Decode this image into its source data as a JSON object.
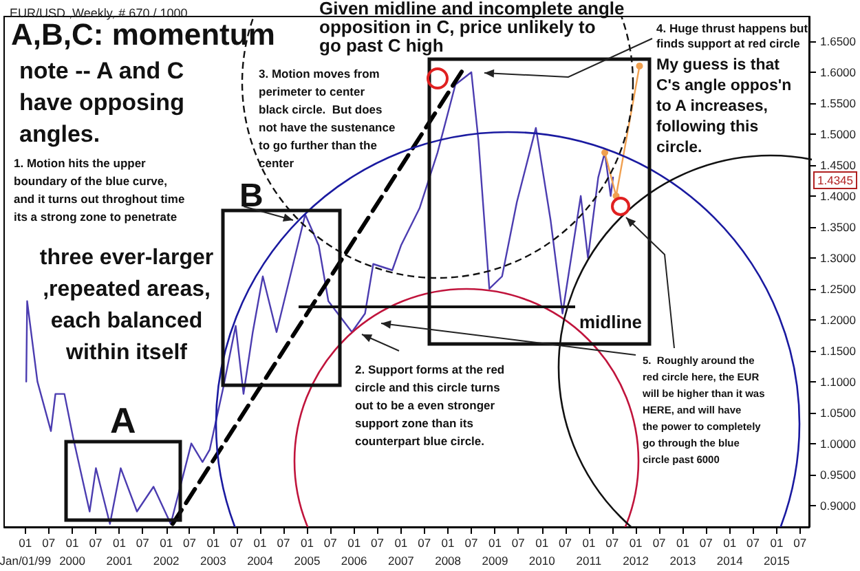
{
  "chart_data": {
    "type": "line",
    "title": "EUR/USD ,Weekly, # 670 / 1000",
    "xlim": [
      "1998-07-20",
      "2015-09-10"
    ],
    "xticks": [
      {
        "value": "1999-01-01",
        "label": "01\nJan/01/99"
      },
      {
        "value": "1999-07-01",
        "label": "07"
      },
      {
        "value": "2000-01-01",
        "label": "01\n2000"
      },
      {
        "value": "2000-07-01",
        "label": "07"
      },
      {
        "value": "2001-01-01",
        "label": "01\n2001"
      },
      {
        "value": "2001-07-01",
        "label": "07"
      },
      {
        "value": "2002-01-01",
        "label": "01\n2002"
      },
      {
        "value": "2002-07-01",
        "label": "07"
      },
      {
        "value": "2003-01-01",
        "label": "01\n2003"
      },
      {
        "value": "2003-07-01",
        "label": "07"
      },
      {
        "value": "2004-01-01",
        "label": "01\n2004"
      },
      {
        "value": "2004-07-01",
        "label": "07"
      },
      {
        "value": "2005-01-01",
        "label": "01\n2005"
      },
      {
        "value": "2005-07-01",
        "label": "07"
      },
      {
        "value": "2006-01-01",
        "label": "01\n2006"
      },
      {
        "value": "2006-07-01",
        "label": "07"
      },
      {
        "value": "2007-01-01",
        "label": "01\n2007"
      },
      {
        "value": "2007-07-01",
        "label": "07"
      },
      {
        "value": "2008-01-01",
        "label": "01\n2008"
      },
      {
        "value": "2008-07-01",
        "label": "07"
      },
      {
        "value": "2009-01-01",
        "label": "01\n2009"
      },
      {
        "value": "2009-07-01",
        "label": "07"
      },
      {
        "value": "2010-01-01",
        "label": "01\n2010"
      },
      {
        "value": "2010-07-01",
        "label": "07"
      },
      {
        "value": "2011-01-01",
        "label": "01\n2011"
      },
      {
        "value": "2011-07-01",
        "label": "07"
      },
      {
        "value": "2012-01-01",
        "label": "01\n2012"
      },
      {
        "value": "2012-07-01",
        "label": "07"
      },
      {
        "value": "2013-01-01",
        "label": "01\n2013"
      },
      {
        "value": "2013-07-01",
        "label": "07"
      },
      {
        "value": "2014-01-01",
        "label": "01\n2014"
      },
      {
        "value": "2014-07-01",
        "label": "07"
      },
      {
        "value": "2015-01-01",
        "label": "01\n2015"
      },
      {
        "value": "2015-07-01",
        "label": "07"
      }
    ],
    "ylim": [
      0.865,
      1.69
    ],
    "yticks": [
      {
        "value": 0.9,
        "label": "0.9000"
      },
      {
        "value": 0.95,
        "label": "0.9500"
      },
      {
        "value": 1.0,
        "label": "1.0000"
      },
      {
        "value": 1.05,
        "label": "1.0500"
      },
      {
        "value": 1.1,
        "label": "1.1000"
      },
      {
        "value": 1.15,
        "label": "1.1500"
      },
      {
        "value": 1.2,
        "label": "1.2000"
      },
      {
        "value": 1.25,
        "label": "1.2500"
      },
      {
        "value": 1.3,
        "label": "1.3000"
      },
      {
        "value": 1.35,
        "label": "1.3500"
      },
      {
        "value": 1.4,
        "label": "1.4000"
      },
      {
        "value": 1.45,
        "label": "1.4500"
      },
      {
        "value": 1.5,
        "label": "1.5000"
      },
      {
        "value": 1.55,
        "label": "1.5500"
      },
      {
        "value": 1.6,
        "label": "1.6000"
      },
      {
        "value": 1.65,
        "label": "1.6500"
      }
    ],
    "series": [
      {
        "color": "#4b3cb0",
        "marker": "none",
        "line_style": "solid",
        "x": [
          "1999-01-08",
          "1999-01-15",
          "1999-04-05",
          "1999-07-19",
          "1999-08-23",
          "1999-11-01",
          "2000-01-07",
          "2000-05-15",
          "2000-07-03",
          "2000-10-20",
          "2001-01-12",
          "2001-05-18",
          "2001-09-24",
          "2002-02-05",
          "2002-07-15",
          "2002-10-10",
          "2002-12-05",
          "2003-03-20",
          "2003-06-25",
          "2003-08-25",
          "2003-11-05",
          "2004-01-22",
          "2004-05-08",
          "2004-12-17",
          "2005-04-01",
          "2005-06-15",
          "2005-12-15",
          "2006-03-27",
          "2006-05-30",
          "2006-10-25",
          "2007-01-01",
          "2007-05-25",
          "2007-10-12",
          "2008-02-28",
          "2008-07-01",
          "2008-08-25",
          "2008-11-18",
          "2009-02-25",
          "2009-06-20",
          "2009-11-15",
          "2010-03-10",
          "2010-06-10",
          "2010-10-30",
          "2010-12-25",
          "2011-03-15",
          "2011-05-05",
          "2011-06-20",
          "2011-07-08"
        ],
        "values": [
          1.1,
          1.23,
          1.1,
          1.02,
          1.08,
          1.08,
          1.01,
          0.89,
          0.96,
          0.87,
          0.96,
          0.89,
          0.93,
          0.87,
          1.0,
          0.97,
          0.99,
          1.09,
          1.19,
          1.08,
          1.18,
          1.27,
          1.18,
          1.37,
          1.32,
          1.23,
          1.18,
          1.21,
          1.29,
          1.28,
          1.32,
          1.38,
          1.47,
          1.58,
          1.6,
          1.49,
          1.25,
          1.27,
          1.39,
          1.51,
          1.36,
          1.21,
          1.4,
          1.3,
          1.43,
          1.47,
          1.4,
          1.43
        ]
      },
      {
        "color": "#f0a050",
        "marker": "circle",
        "line_style": "solid",
        "x": [
          "2011-05-05",
          "2011-08-01",
          "2012-01-30"
        ],
        "values": [
          1.47,
          1.4,
          1.61
        ]
      },
      {
        "color": "#000000",
        "marker": "none",
        "line_style": "dashed",
        "x": [
          "2002-02-20",
          "2008-05-15"
        ],
        "values": [
          0.87,
          1.61
        ]
      }
    ],
    "annotations": [
      "A,B,C: momentum",
      "note -- A and C\nhave opposing\nangles.",
      "1. Motion hits the upper\nboundary of the blue curve,\nand it turns out throghout time\nits a strong zone to penetrate",
      "three ever-larger\n,repeated areas,\neach balanced\nwithin itself",
      "A",
      "B",
      "midline",
      "Given midline and incomplete angle\nopposition in C, price unlikely to\ngo past C high",
      "3. Motion moves from\nperimeter to center\nblack circle.  But does\nnot have the sustenance\nto go further than the\ncenter",
      "4. Huge thrust happens but\nfinds support at red circle",
      "My guess is that\nC's angle oppos'n\nto A increases,\nfollowing this\ncircle.",
      "2. Support forms at the red\ncircle and this circle turns\nout to be a even stronger\nsupport zone than its\ncounterpart blue circle.",
      "5.  Roughly around the\nred circle here, the EUR\nwill be higher than it was\nHERE, and will have\nthe power to completely\ngo through the blue\ncircle past 6000",
      "1.4345"
    ]
  }
}
